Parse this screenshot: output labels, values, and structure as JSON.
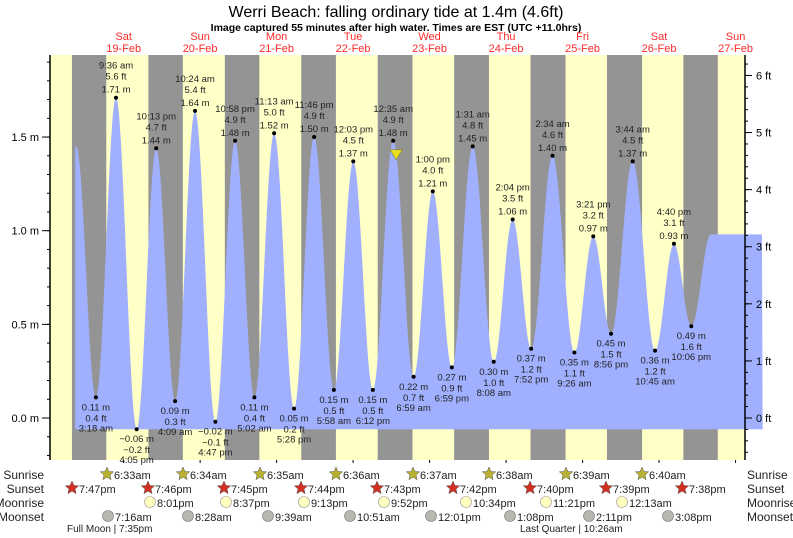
{
  "chart_data": {
    "type": "area",
    "title": "Werri Beach: falling  ordinary tide at 1.4m (4.6ft)",
    "subtitle": "Image captured 55 minutes after high water. Times are EST (UTC +11.0hrs)",
    "y_left_label_unit": "m",
    "y_right_label_unit": "ft",
    "ylim_m": [
      -0.23,
      1.92
    ],
    "y_left_ticks": [
      {
        "value": 0.0,
        "label": "0.0 m"
      },
      {
        "value": 0.5,
        "label": "0.5 m"
      },
      {
        "value": 1.0,
        "label": "1.0 m"
      },
      {
        "value": 1.5,
        "label": "1.5 m"
      }
    ],
    "y_right_ticks": [
      {
        "value": 0,
        "label": "0 ft"
      },
      {
        "value": 1,
        "label": "1 ft"
      },
      {
        "value": 2,
        "label": "2 ft"
      },
      {
        "value": 3,
        "label": "3 ft"
      },
      {
        "value": 4,
        "label": "4 ft"
      },
      {
        "value": 5,
        "label": "5 ft"
      },
      {
        "value": 6,
        "label": "6 ft"
      }
    ],
    "day_labels": [
      {
        "day": "Sat",
        "date": "19-Feb",
        "day_index": 0
      },
      {
        "day": "Sun",
        "date": "20-Feb",
        "day_index": 1
      },
      {
        "day": "Mon",
        "date": "21-Feb",
        "day_index": 2
      },
      {
        "day": "Tue",
        "date": "22-Feb",
        "day_index": 3
      },
      {
        "day": "Wed",
        "date": "23-Feb",
        "day_index": 4
      },
      {
        "day": "Thu",
        "date": "24-Feb",
        "day_index": 5
      },
      {
        "day": "Fri",
        "date": "25-Feb",
        "day_index": 6
      },
      {
        "day": "Sat",
        "date": "26-Feb",
        "day_index": 7
      },
      {
        "day": "Sun",
        "date": "27-Feb",
        "day_index": 8
      }
    ],
    "tides": [
      {
        "type": "low",
        "day_index": 0,
        "time": "3:18 am",
        "hour": 3.3,
        "m": 0.11,
        "m_label": "0.11 m",
        "ft_label": "0.4 ft"
      },
      {
        "type": "high",
        "day_index": 0,
        "time": "9:36 am",
        "hour": 9.6,
        "m": 1.71,
        "m_label": "1.71 m",
        "ft_label": "5.6 ft"
      },
      {
        "type": "low",
        "day_index": 0,
        "time": "4:05 pm",
        "hour": 16.08,
        "m": -0.06,
        "m_label": "-0.06 m",
        "ft_label": "-0.2 ft"
      },
      {
        "type": "high",
        "day_index": 0,
        "time": "10:13 pm",
        "hour": 22.22,
        "m": 1.44,
        "m_label": "1.44 m",
        "ft_label": "4.7 ft"
      },
      {
        "type": "low",
        "day_index": 1,
        "time": "4:09 am",
        "hour": 4.15,
        "m": 0.09,
        "m_label": "0.09 m",
        "ft_label": "0.3 ft"
      },
      {
        "type": "high",
        "day_index": 1,
        "time": "10:24 am",
        "hour": 10.4,
        "m": 1.64,
        "m_label": "1.64 m",
        "ft_label": "5.4 ft"
      },
      {
        "type": "low",
        "day_index": 1,
        "time": "4:47 pm",
        "hour": 16.78,
        "m": -0.02,
        "m_label": "-0.02 m",
        "ft_label": "-0.1 ft"
      },
      {
        "type": "high",
        "day_index": 1,
        "time": "10:58 pm",
        "hour": 22.97,
        "m": 1.48,
        "m_label": "1.48 m",
        "ft_label": "4.9 ft"
      },
      {
        "type": "low",
        "day_index": 2,
        "time": "5:02 am",
        "hour": 5.03,
        "m": 0.11,
        "m_label": "0.11 m",
        "ft_label": "0.4 ft"
      },
      {
        "type": "high",
        "day_index": 2,
        "time": "11:13 am",
        "hour": 11.22,
        "m": 1.52,
        "m_label": "1.52 m",
        "ft_label": "5.0 ft"
      },
      {
        "type": "low",
        "day_index": 2,
        "time": "5:28 pm",
        "hour": 17.47,
        "m": 0.05,
        "m_label": "0.05 m",
        "ft_label": "0.2 ft"
      },
      {
        "type": "high",
        "day_index": 2,
        "time": "11:46 pm",
        "hour": 23.77,
        "m": 1.5,
        "m_label": "1.50 m",
        "ft_label": "4.9 ft"
      },
      {
        "type": "low",
        "day_index": 3,
        "time": "5:58 am",
        "hour": 5.97,
        "m": 0.15,
        "m_label": "0.15 m",
        "ft_label": "0.5 ft"
      },
      {
        "type": "high",
        "day_index": 3,
        "time": "12:03 pm",
        "hour": 12.05,
        "m": 1.37,
        "m_label": "1.37 m",
        "ft_label": "4.5 ft"
      },
      {
        "type": "low",
        "day_index": 3,
        "time": "6:12 pm",
        "hour": 18.2,
        "m": 0.15,
        "m_label": "0.15 m",
        "ft_label": "0.5 ft"
      },
      {
        "type": "high",
        "day_index": 4,
        "time": "12:35 am",
        "hour": 0.58,
        "m": 1.48,
        "m_label": "1.48 m",
        "ft_label": "4.9 ft"
      },
      {
        "type": "low",
        "day_index": 4,
        "time": "6:59 am",
        "hour": 6.98,
        "m": 0.22,
        "m_label": "0.22 m",
        "ft_label": "0.7 ft"
      },
      {
        "type": "high",
        "day_index": 4,
        "time": "1:00 pm",
        "hour": 13.0,
        "m": 1.21,
        "m_label": "1.21 m",
        "ft_label": "4.0 ft"
      },
      {
        "type": "low",
        "day_index": 4,
        "time": "6:59 pm",
        "hour": 18.98,
        "m": 0.27,
        "m_label": "0.27 m",
        "ft_label": "0.9 ft"
      },
      {
        "type": "high",
        "day_index": 5,
        "time": "1:31 am",
        "hour": 1.52,
        "m": 1.45,
        "m_label": "1.45 m",
        "ft_label": "4.8 ft"
      },
      {
        "type": "low",
        "day_index": 5,
        "time": "8:08 am",
        "hour": 8.13,
        "m": 0.3,
        "m_label": "0.30 m",
        "ft_label": "1.0 ft"
      },
      {
        "type": "high",
        "day_index": 5,
        "time": "2:04 pm",
        "hour": 14.07,
        "m": 1.06,
        "m_label": "1.06 m",
        "ft_label": "3.5 ft"
      },
      {
        "type": "low",
        "day_index": 5,
        "time": "7:52 pm",
        "hour": 19.87,
        "m": 0.37,
        "m_label": "0.37 m",
        "ft_label": "1.2 ft"
      },
      {
        "type": "high",
        "day_index": 6,
        "time": "2:34 am",
        "hour": 2.57,
        "m": 1.4,
        "m_label": "1.40 m",
        "ft_label": "4.6 ft"
      },
      {
        "type": "low",
        "day_index": 6,
        "time": "9:26 am",
        "hour": 9.43,
        "m": 0.35,
        "m_label": "0.35 m",
        "ft_label": "1.1 ft"
      },
      {
        "type": "high",
        "day_index": 6,
        "time": "3:21 pm",
        "hour": 15.35,
        "m": 0.97,
        "m_label": "0.97 m",
        "ft_label": "3.2 ft"
      },
      {
        "type": "low",
        "day_index": 6,
        "time": "8:56 pm",
        "hour": 20.93,
        "m": 0.45,
        "m_label": "0.45 m",
        "ft_label": "1.5 ft"
      },
      {
        "type": "high",
        "day_index": 7,
        "time": "3:44 am",
        "hour": 3.73,
        "m": 1.37,
        "m_label": "1.37 m",
        "ft_label": "4.5 ft"
      },
      {
        "type": "low",
        "day_index": 7,
        "time": "10:45 am",
        "hour": 10.75,
        "m": 0.36,
        "m_label": "0.36 m",
        "ft_label": "1.2 ft"
      },
      {
        "type": "high",
        "day_index": 7,
        "time": "4:40 pm",
        "hour": 16.67,
        "m": 0.93,
        "m_label": "0.93 m",
        "ft_label": "3.1 ft"
      },
      {
        "type": "low",
        "day_index": 7,
        "time": "10:06 pm",
        "hour": 22.1,
        "m": 0.49,
        "m_label": "0.49 m",
        "ft_label": "1.6 ft"
      }
    ],
    "current_marker": {
      "day_index": 4,
      "hour": 1.5,
      "m": 1.4,
      "label": "falling"
    },
    "astro": {
      "row_labels": {
        "sunrise": "Sunrise",
        "sunset": "Sunset",
        "moonrise": "Moonrise",
        "moonset": "Moonset"
      },
      "sunrise": [
        {
          "day_index": 0,
          "time": "6:33am",
          "hour": 6.55
        },
        {
          "day_index": 1,
          "time": "6:34am",
          "hour": 6.57
        },
        {
          "day_index": 2,
          "time": "6:35am",
          "hour": 6.58
        },
        {
          "day_index": 3,
          "time": "6:36am",
          "hour": 6.6
        },
        {
          "day_index": 4,
          "time": "6:37am",
          "hour": 6.62
        },
        {
          "day_index": 5,
          "time": "6:38am",
          "hour": 6.63
        },
        {
          "day_index": 6,
          "time": "6:39am",
          "hour": 6.65
        },
        {
          "day_index": 7,
          "time": "6:40am",
          "hour": 6.67
        }
      ],
      "sunset": [
        {
          "day_index": -1,
          "time": "7:47pm",
          "hour": 19.78
        },
        {
          "day_index": 0,
          "time": "7:46pm",
          "hour": 19.77
        },
        {
          "day_index": 1,
          "time": "7:45pm",
          "hour": 19.75
        },
        {
          "day_index": 2,
          "time": "7:44pm",
          "hour": 19.73
        },
        {
          "day_index": 3,
          "time": "7:43pm",
          "hour": 19.72
        },
        {
          "day_index": 4,
          "time": "7:42pm",
          "hour": 19.7
        },
        {
          "day_index": 5,
          "time": "7:40pm",
          "hour": 19.67
        },
        {
          "day_index": 6,
          "time": "7:39pm",
          "hour": 19.65
        },
        {
          "day_index": 7,
          "time": "7:38pm",
          "hour": 19.63
        }
      ],
      "moonrise": [
        {
          "day_index": 0,
          "time": "8:01pm"
        },
        {
          "day_index": 1,
          "time": "8:37pm"
        },
        {
          "day_index": 2,
          "time": "9:13pm"
        },
        {
          "day_index": 3,
          "time": "9:52pm"
        },
        {
          "day_index": 4,
          "time": "10:34pm"
        },
        {
          "day_index": 5,
          "time": "11:21pm"
        },
        {
          "day_index": 6,
          "time": "12:13am"
        }
      ],
      "moonset": [
        {
          "day_index": 0,
          "time": "7:16am"
        },
        {
          "day_index": 1,
          "time": "8:28am"
        },
        {
          "day_index": 2,
          "time": "9:39am"
        },
        {
          "day_index": 3,
          "time": "10:51am"
        },
        {
          "day_index": 4,
          "time": "12:01pm"
        },
        {
          "day_index": 5,
          "time": "1:08pm"
        },
        {
          "day_index": 6,
          "time": "2:11pm"
        },
        {
          "day_index": 7,
          "time": "3:08pm"
        }
      ],
      "moon_phases": [
        {
          "day_index": 0,
          "label": "Full Moon | 7:35pm"
        },
        {
          "day_index": 6,
          "label": "Last Quarter | 10:26am"
        }
      ]
    },
    "colors": {
      "day_band": "#ffffc8",
      "night_band": "#949494",
      "tide_fill": "#a0b0ff",
      "day_label": "#ff2a2a",
      "sunrise_star": "#b8b030",
      "sunset_star": "#d03020",
      "moonrise_circle": "#ffffc0",
      "moonset_circle": "#b8b8b0",
      "marker": "#e8e020"
    },
    "grid": false
  }
}
